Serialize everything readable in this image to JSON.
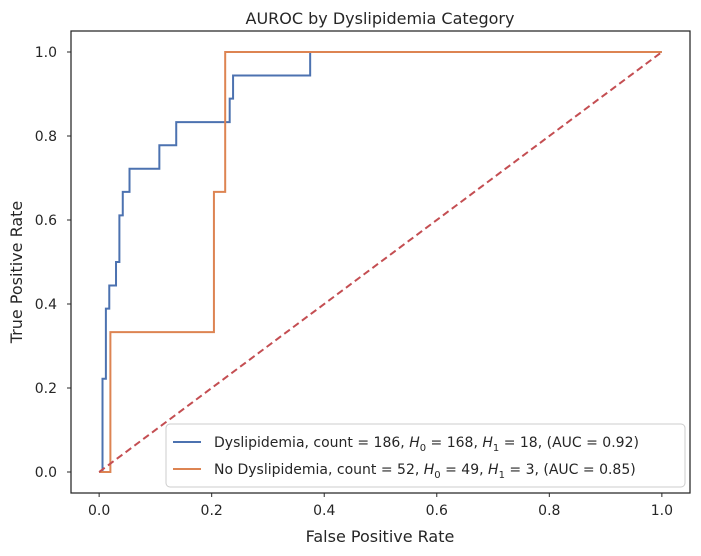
{
  "chart_data": {
    "type": "line",
    "title": "AUROC by Dyslipidemia Category",
    "xlabel": "False Positive Rate",
    "ylabel": "True Positive Rate",
    "xlim": [
      -0.05,
      1.05
    ],
    "ylim": [
      -0.05,
      1.05
    ],
    "xticks": [
      0.0,
      0.2,
      0.4,
      0.6,
      0.8,
      1.0
    ],
    "yticks": [
      0.0,
      0.2,
      0.4,
      0.6,
      0.8,
      1.0
    ],
    "xtick_labels": [
      "0.0",
      "0.2",
      "0.4",
      "0.6",
      "0.8",
      "1.0"
    ],
    "ytick_labels": [
      "0.0",
      "0.2",
      "0.4",
      "0.6",
      "0.8",
      "1.0"
    ],
    "grid": false,
    "legend_position": "lower-right",
    "series": [
      {
        "name": "Dyslipidemia, count = 186, H0 = 168, H1 = 18, (AUC = 0.92)",
        "legend": {
          "prefix": "Dyslipidemia, count = 186, ",
          "h0_label": "H",
          "h0_sub": "0",
          "h0_value": " = 168, ",
          "h1_label": "H",
          "h1_sub": "1",
          "h1_value": " = 18, (AUC = 0.92)"
        },
        "color": "#4c72b0",
        "x": [
          0.0,
          0.006,
          0.006,
          0.012,
          0.012,
          0.018,
          0.018,
          0.03,
          0.03,
          0.036,
          0.036,
          0.042,
          0.042,
          0.054,
          0.054,
          0.107,
          0.107,
          0.137,
          0.137,
          0.232,
          0.232,
          0.238,
          0.238,
          0.375,
          0.375,
          0.381,
          1.0
        ],
        "y": [
          0.0,
          0.0,
          0.222,
          0.222,
          0.389,
          0.389,
          0.444,
          0.444,
          0.5,
          0.5,
          0.611,
          0.611,
          0.667,
          0.667,
          0.722,
          0.722,
          0.778,
          0.778,
          0.833,
          0.833,
          0.889,
          0.889,
          0.944,
          0.944,
          1.0,
          1.0,
          1.0
        ]
      },
      {
        "name": "No Dyslipidemia, count = 52, H0 = 49, H1 = 3, (AUC = 0.85)",
        "legend": {
          "prefix": "No Dyslipidemia, count = 52, ",
          "h0_label": "H",
          "h0_sub": "0",
          "h0_value": " = 49, ",
          "h1_label": "H",
          "h1_sub": "1",
          "h1_value": " = 3, (AUC = 0.85)"
        },
        "color": "#dd8452",
        "x": [
          0.0,
          0.02,
          0.02,
          0.204,
          0.204,
          0.224,
          0.224,
          1.0
        ],
        "y": [
          0.0,
          0.0,
          0.333,
          0.333,
          0.667,
          0.667,
          1.0,
          1.0
        ]
      }
    ],
    "reference_line": {
      "x": [
        0.0,
        1.0
      ],
      "y": [
        0.0,
        1.0
      ],
      "color": "#c44e52",
      "style": "dashed"
    }
  }
}
